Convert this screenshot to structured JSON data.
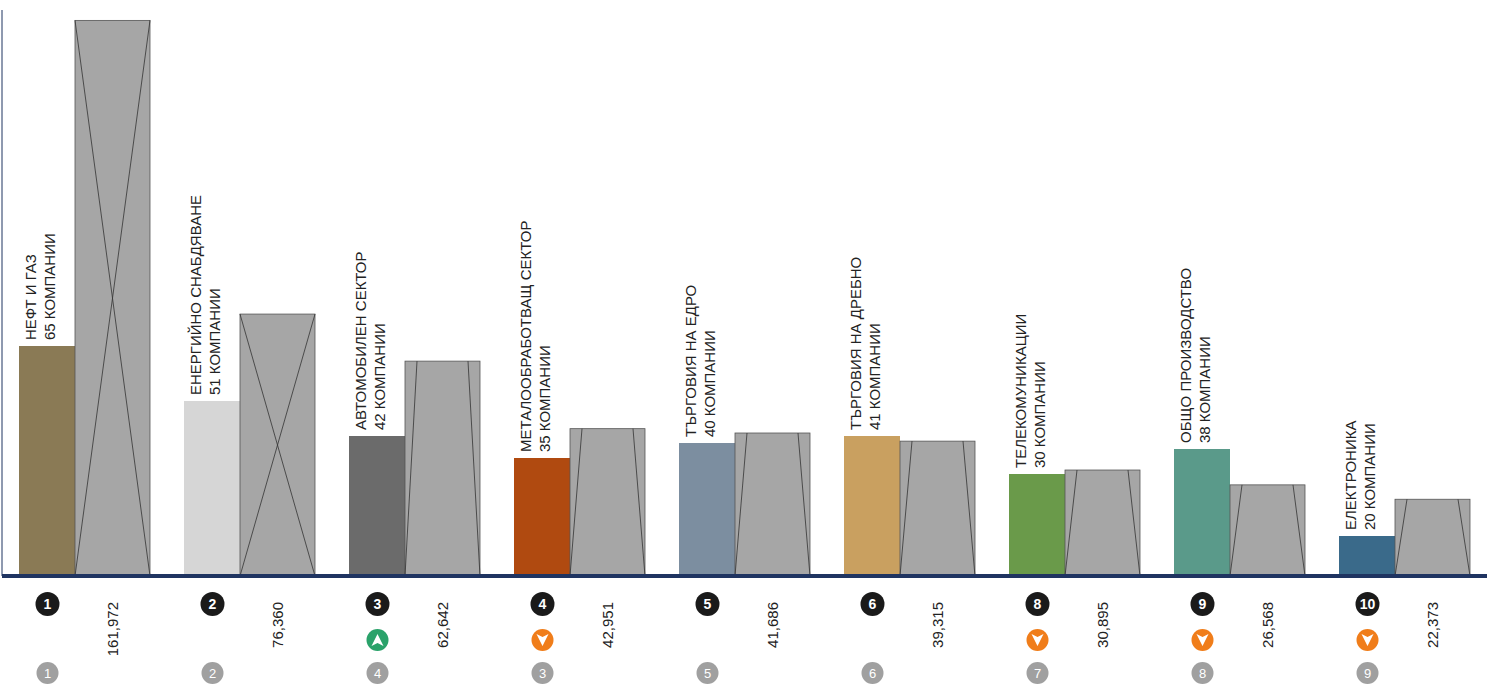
{
  "chart_data": {
    "type": "bar",
    "categories": [
      "НЕФТ И ГАЗ",
      "ЕНЕРГИЙНО СНАБДЯВАНЕ",
      "АВТОМОБИЛЕН СЕКТОР",
      "МЕТАЛООБРАБОТВАЩ СЕКТОР",
      "ТЪРГОВИЯ НА ЕДРО",
      "ТЪРГОВИЯ НА ДРЕБНО",
      "ТЕЛЕКОМУНИКАЦИИ",
      "ОБЩО ПРОИЗВОДСТВО",
      "ЕЛЕКТРОНИКА"
    ],
    "company_labels": [
      "65 КОМПАНИИ",
      "51 КОМПАНИИ",
      "42 КОМПАНИИ",
      "35 КОМПАНИИ",
      "40 КОМПАНИИ",
      "41 КОМПАНИИ",
      "30 КОМПАНИИ",
      "38 КОМПАНИИ",
      "20 КОМПАНИИ"
    ],
    "values": [
      161972,
      76360,
      62642,
      42951,
      41686,
      39315,
      30895,
      26568,
      22373
    ],
    "value_labels": [
      "161,972",
      "76,360",
      "62,642",
      "42,951",
      "41,686",
      "39,315",
      "30,895",
      "26,568",
      "22,373"
    ],
    "ranks": [
      1,
      2,
      3,
      4,
      5,
      6,
      8,
      9,
      10
    ],
    "previous_ranks": [
      1,
      2,
      4,
      3,
      5,
      6,
      7,
      8,
      9
    ],
    "color": "#a6a6a6",
    "ylim": [
      0,
      165000
    ],
    "yticks": [],
    "data_labels": true,
    "tick_labels": false,
    "grid": false
  }
}
